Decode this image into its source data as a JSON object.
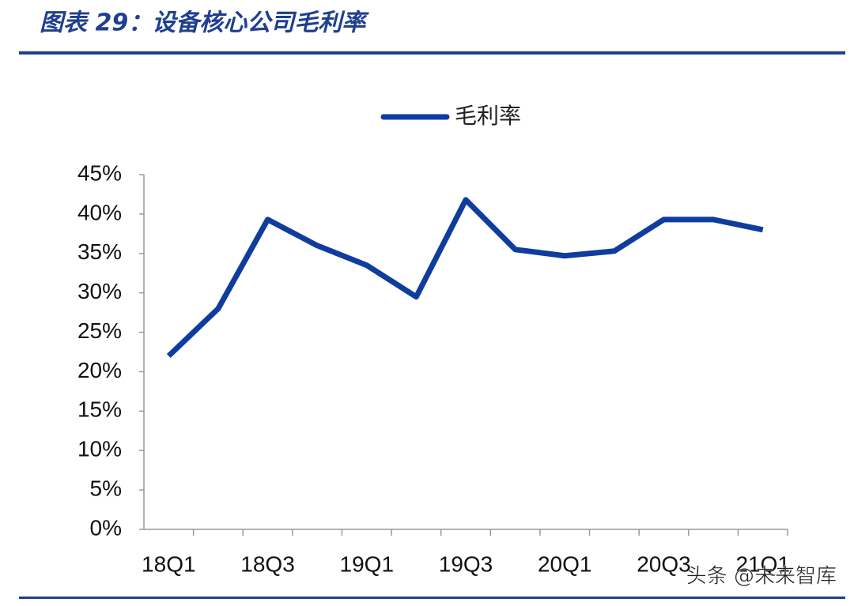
{
  "chart_data": {
    "type": "line",
    "title": "图表 29：设备核心公司毛利率",
    "watermark": "头条 @未来智库",
    "categories": [
      "18Q1",
      null,
      "18Q3",
      null,
      "19Q1",
      null,
      "19Q3",
      null,
      "20Q1",
      null,
      "20Q3",
      null,
      "21Q1"
    ],
    "series": [
      {
        "name": "毛利率",
        "color": "#0f3d9e",
        "values": [
          22,
          28,
          39.3,
          36,
          33.5,
          29.5,
          41.8,
          35.5,
          34.7,
          35.3,
          39.3,
          39.3,
          38
        ]
      }
    ],
    "ylim": [
      0,
      45
    ],
    "yticks": [
      {
        "value": 0,
        "label": "0%"
      },
      {
        "value": 5,
        "label": "5%"
      },
      {
        "value": 10,
        "label": "10%"
      },
      {
        "value": 15,
        "label": "15%"
      },
      {
        "value": 20,
        "label": "20%"
      },
      {
        "value": 25,
        "label": "25%"
      },
      {
        "value": 30,
        "label": "30%"
      },
      {
        "value": 35,
        "label": "35%"
      },
      {
        "value": 40,
        "label": "40%"
      },
      {
        "value": 45,
        "label": "45%"
      }
    ]
  }
}
